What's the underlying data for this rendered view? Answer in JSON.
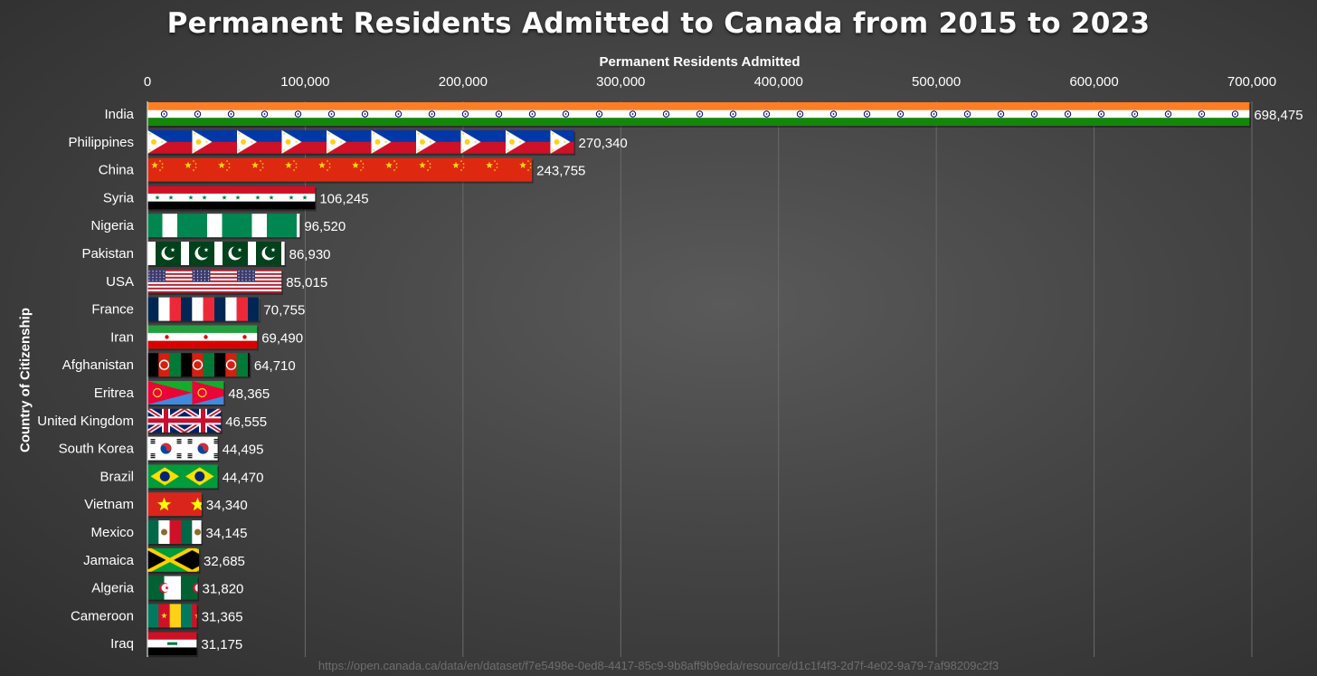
{
  "chart_data": {
    "type": "bar",
    "orientation": "horizontal",
    "title": "Permanent Residents Admitted to Canada from 2015 to 2023",
    "xlabel": "Permanent Residents Admitted",
    "ylabel": "Country of Citizenship",
    "xlim": [
      0,
      700000
    ],
    "xticks": [
      0,
      100000,
      200000,
      300000,
      400000,
      500000,
      600000,
      700000
    ],
    "xtick_labels": [
      "0",
      "100,000",
      "200,000",
      "300,000",
      "400,000",
      "500,000",
      "600,000",
      "700,000"
    ],
    "grid": true,
    "categories": [
      "India",
      "Philippines",
      "China",
      "Syria",
      "Nigeria",
      "Pakistan",
      "USA",
      "France",
      "Iran",
      "Afghanistan",
      "Eritrea",
      "United Kingdom",
      "South Korea",
      "Brazil",
      "Vietnam",
      "Mexico",
      "Jamaica",
      "Algeria",
      "Cameroon",
      "Iraq"
    ],
    "values": [
      698475,
      270340,
      243755,
      106245,
      96520,
      86930,
      85015,
      70755,
      69490,
      64710,
      48365,
      46555,
      44495,
      44470,
      34340,
      34145,
      32685,
      31820,
      31365,
      31175
    ],
    "value_labels": [
      "698,475",
      "270,340",
      "243,755",
      "106,245",
      "96,520",
      "86,930",
      "85,015",
      "70,755",
      "69,490",
      "64,710",
      "48,365",
      "46,555",
      "44,495",
      "44,470",
      "34,340",
      "34,145",
      "32,685",
      "31,820",
      "31,365",
      "31,175"
    ],
    "bar_fill": "national flags (tiled)"
  },
  "source_url": "https://open.canada.ca/data/en/dataset/f7e5498e-0ed8-4417-85c9-9b8aff9b9eda/resource/d1c1f4f3-2d7f-4e02-9a79-7af98209c2f3",
  "colors": {
    "india": [
      "#ff7e24",
      "#ffffff",
      "#138808",
      "#000080"
    ],
    "philippines": [
      "#0038a8",
      "#ce1126",
      "#ffffff",
      "#fcd116"
    ],
    "china": [
      "#de2910",
      "#ffde00"
    ],
    "syria": [
      "#ce1126",
      "#ffffff",
      "#000000",
      "#007a3d"
    ],
    "nigeria": [
      "#008751",
      "#ffffff"
    ],
    "pakistan": [
      "#01411c",
      "#ffffff"
    ],
    "usa": [
      "#b22234",
      "#ffffff",
      "#3c3b6e"
    ],
    "france": [
      "#002654",
      "#ffffff",
      "#ed2939"
    ],
    "iran": [
      "#239f40",
      "#ffffff",
      "#da0000"
    ],
    "afghanistan": [
      "#000000",
      "#d32011",
      "#007a36"
    ],
    "eritrea": [
      "#ea0437",
      "#4189dd",
      "#12ad2b",
      "#ffc726"
    ],
    "uk": [
      "#012169",
      "#ffffff",
      "#c8102e"
    ],
    "south_korea": [
      "#ffffff",
      "#cd2e3a",
      "#0047a0",
      "#000000"
    ],
    "brazil": [
      "#009c3b",
      "#ffdf00",
      "#002776"
    ],
    "vietnam": [
      "#da251d",
      "#ffff00"
    ],
    "mexico": [
      "#006847",
      "#ffffff",
      "#ce1126"
    ],
    "jamaica": [
      "#009b3a",
      "#fed100",
      "#000000"
    ],
    "algeria": [
      "#006233",
      "#ffffff",
      "#d21034"
    ],
    "cameroon": [
      "#007a5e",
      "#ce1126",
      "#fcd116"
    ],
    "iraq": [
      "#ce1126",
      "#ffffff",
      "#000000",
      "#007a3d"
    ]
  }
}
